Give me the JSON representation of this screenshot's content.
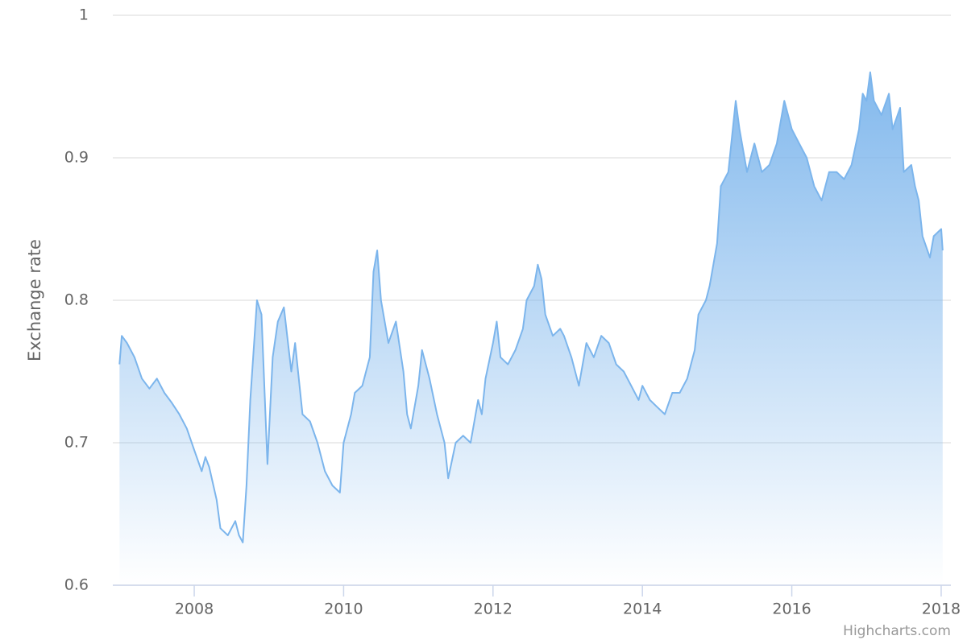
{
  "chart_data": {
    "type": "area",
    "y_label": "Exchange rate",
    "credit": "Highcharts.com",
    "color": "#7cb5ec",
    "grid": true,
    "x": [
      2007.0,
      2007.03,
      2007.1,
      2007.2,
      2007.3,
      2007.4,
      2007.5,
      2007.6,
      2007.7,
      2007.8,
      2007.9,
      2008.0,
      2008.1,
      2008.15,
      2008.2,
      2008.3,
      2008.35,
      2008.45,
      2008.55,
      2008.6,
      2008.65,
      2008.7,
      2008.75,
      2008.84,
      2008.9,
      2008.98,
      2009.05,
      2009.12,
      2009.2,
      2009.3,
      2009.35,
      2009.45,
      2009.55,
      2009.65,
      2009.75,
      2009.85,
      2009.95,
      2010.0,
      2010.1,
      2010.15,
      2010.25,
      2010.35,
      2010.4,
      2010.45,
      2010.5,
      2010.6,
      2010.7,
      2010.8,
      2010.85,
      2010.9,
      2011.0,
      2011.05,
      2011.15,
      2011.25,
      2011.35,
      2011.4,
      2011.5,
      2011.6,
      2011.7,
      2011.8,
      2011.85,
      2011.9,
      2012.0,
      2012.05,
      2012.1,
      2012.2,
      2012.3,
      2012.4,
      2012.45,
      2012.55,
      2012.6,
      2012.65,
      2012.7,
      2012.8,
      2012.9,
      2012.95,
      2013.05,
      2013.15,
      2013.25,
      2013.35,
      2013.45,
      2013.55,
      2013.65,
      2013.75,
      2013.85,
      2013.95,
      2014.0,
      2014.1,
      2014.2,
      2014.3,
      2014.4,
      2014.5,
      2014.6,
      2014.7,
      2014.75,
      2014.85,
      2014.9,
      2015.0,
      2015.05,
      2015.15,
      2015.25,
      2015.3,
      2015.4,
      2015.5,
      2015.6,
      2015.7,
      2015.8,
      2015.9,
      2016.0,
      2016.1,
      2016.2,
      2016.3,
      2016.4,
      2016.5,
      2016.6,
      2016.7,
      2016.8,
      2016.9,
      2016.95,
      2017.0,
      2017.05,
      2017.1,
      2017.2,
      2017.3,
      2017.35,
      2017.45,
      2017.5,
      2017.6,
      2017.65,
      2017.7,
      2017.75,
      2017.85,
      2017.9,
      2018.0,
      2018.02
    ],
    "values": [
      0.755,
      0.775,
      0.77,
      0.76,
      0.745,
      0.738,
      0.745,
      0.735,
      0.728,
      0.72,
      0.71,
      0.695,
      0.68,
      0.69,
      0.683,
      0.66,
      0.64,
      0.635,
      0.645,
      0.635,
      0.63,
      0.67,
      0.73,
      0.8,
      0.79,
      0.685,
      0.76,
      0.785,
      0.795,
      0.75,
      0.77,
      0.72,
      0.715,
      0.7,
      0.68,
      0.67,
      0.665,
      0.7,
      0.72,
      0.735,
      0.74,
      0.76,
      0.82,
      0.835,
      0.8,
      0.77,
      0.785,
      0.75,
      0.72,
      0.71,
      0.74,
      0.765,
      0.745,
      0.72,
      0.7,
      0.675,
      0.7,
      0.705,
      0.7,
      0.73,
      0.72,
      0.745,
      0.77,
      0.785,
      0.76,
      0.755,
      0.765,
      0.78,
      0.8,
      0.81,
      0.825,
      0.815,
      0.79,
      0.775,
      0.78,
      0.775,
      0.76,
      0.74,
      0.77,
      0.76,
      0.775,
      0.77,
      0.755,
      0.75,
      0.74,
      0.73,
      0.74,
      0.73,
      0.725,
      0.72,
      0.735,
      0.735,
      0.745,
      0.765,
      0.79,
      0.8,
      0.81,
      0.84,
      0.88,
      0.89,
      0.94,
      0.92,
      0.89,
      0.91,
      0.89,
      0.895,
      0.91,
      0.94,
      0.92,
      0.91,
      0.9,
      0.88,
      0.87,
      0.89,
      0.89,
      0.885,
      0.895,
      0.92,
      0.945,
      0.94,
      0.96,
      0.94,
      0.93,
      0.945,
      0.92,
      0.935,
      0.89,
      0.895,
      0.88,
      0.87,
      0.845,
      0.83,
      0.845,
      0.85,
      0.835
    ],
    "xlim": [
      2006.91,
      2018.13
    ],
    "xticks": [
      2008,
      2010,
      2012,
      2014,
      2016,
      2018
    ],
    "ylim": [
      0.6,
      1
    ],
    "yticks": [
      0.6,
      0.7,
      0.8,
      0.9,
      1
    ]
  }
}
